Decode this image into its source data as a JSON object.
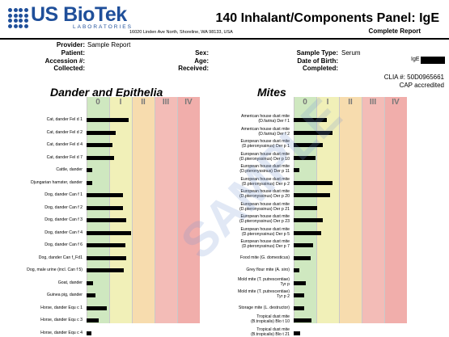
{
  "header": {
    "logo_text": "US BioTek",
    "logo_sub": "LABORATORIES",
    "address": "16020 Linden Ave North, Shoreline, WA 98133, USA",
    "title": "140 Inhalant/Components Panel: IgE",
    "subtitle": "Complete Report",
    "brand_color": "#1f4f9a"
  },
  "info": {
    "provider_label": "Provider:",
    "provider_value": "Sample Report",
    "patient_label": "Patient:",
    "accession_label": "Accession #:",
    "collected_label": "Collected:",
    "sex_label": "Sex:",
    "age_label": "Age:",
    "received_label": "Received:",
    "sample_type_label": "Sample Type:",
    "sample_type_value": "Serum",
    "dob_label": "Date of Birth:",
    "completed_label": "Completed:",
    "ige_label": "IgE",
    "clia": "CLIA #: 50D0965661",
    "cap": "CAP accredited"
  },
  "class_labels": [
    "0",
    "I",
    "II",
    "III",
    "IV"
  ],
  "zone_colors": [
    "#cfe8c0",
    "#f1f0b8",
    "#f7dcae",
    "#f3bcb7",
    "#f1aeab"
  ],
  "sections": [
    {
      "title": "Dander and Epithelia",
      "rows": [
        {
          "label": "Cat, dander Fel d 1",
          "value": 1.85
        },
        {
          "label": "Cat, dander Fel d 2",
          "value": 1.3
        },
        {
          "label": "Cat, dander Fel d 4",
          "value": 1.15
        },
        {
          "label": "Cat, dander Fel d 7",
          "value": 1.2
        },
        {
          "label": "Cattle, dander",
          "value": 0.25
        },
        {
          "label": "Djungarian hamster, dander",
          "value": 0.25
        },
        {
          "label": "Dog, dander Can f 1",
          "value": 1.6
        },
        {
          "label": "Dog, dander Can f 2",
          "value": 1.6
        },
        {
          "label": "Dog, dander Can f 3",
          "value": 1.75
        },
        {
          "label": "Dog, dander Can f 4",
          "value": 1.95
        },
        {
          "label": "Dog, dander Can f 6",
          "value": 1.7
        },
        {
          "label": "Dog, dander Can f_Fd1",
          "value": 1.75
        },
        {
          "label": "Dog, male urine (incl. Can f 5)",
          "value": 1.65
        },
        {
          "label": "Goat, dander",
          "value": 0.3
        },
        {
          "label": "Guinea pig, dander",
          "value": 0.4
        },
        {
          "label": "Horse, dander Equ c 1",
          "value": 0.9
        },
        {
          "label": "Horse, dander Equ c 3",
          "value": 0.55
        },
        {
          "label": "Horse, dander Equ c 4",
          "value": 0.2
        }
      ]
    },
    {
      "title": "Mites",
      "rows": [
        {
          "label": "American house dust mite|(D.farina) Der f 1",
          "value": 1.45
        },
        {
          "label": "American house dust mite|(D.farina) Der f 2",
          "value": 1.7
        },
        {
          "label": "European house dust mite|(D.pteronyssinus) Der p 1",
          "value": 1.3
        },
        {
          "label": "European house dust mite|(D.pteronyssinus) Der p 10",
          "value": 0.95
        },
        {
          "label": "European house dust mite|(D.pteronyssinus) Der p 11",
          "value": 0.25
        },
        {
          "label": "European house dust mite|(D.pteronyssinus) Der p 2",
          "value": 1.7
        },
        {
          "label": "European house dust mite|(D.pteronyssinus) Der p 20",
          "value": 1.6
        },
        {
          "label": "European house dust mite|(D.pteronyssinus) Der p 21",
          "value": 1.05
        },
        {
          "label": "European house dust mite|(D.pteronyssinus) Der p 23",
          "value": 1.3
        },
        {
          "label": "European house dust mite|(D.pteronyssinus) Der p 5",
          "value": 1.2
        },
        {
          "label": "European house dust mite|(D.pteronyssinus) Der p 7",
          "value": 0.85
        },
        {
          "label": "Food mite (G. domesticus)",
          "value": 0.75
        },
        {
          "label": "Grey flour mite (A. siro)",
          "value": 0.25
        },
        {
          "label": "Mold mite (T. putrescentiae)|Tyr p",
          "value": 0.55
        },
        {
          "label": "Mold mite (T. putrescentiae)|Tyr p 2",
          "value": 0.45
        },
        {
          "label": "Storage mite (L. destructor)",
          "value": 0.45
        },
        {
          "label": "Tropical dust mite|(B.tropicalis) Blo t 10",
          "value": 0.8
        },
        {
          "label": "Tropical dust mite|(B.tropicalis) Blo t 21",
          "value": 0.3
        }
      ]
    }
  ],
  "watermark": "SAMPLE"
}
